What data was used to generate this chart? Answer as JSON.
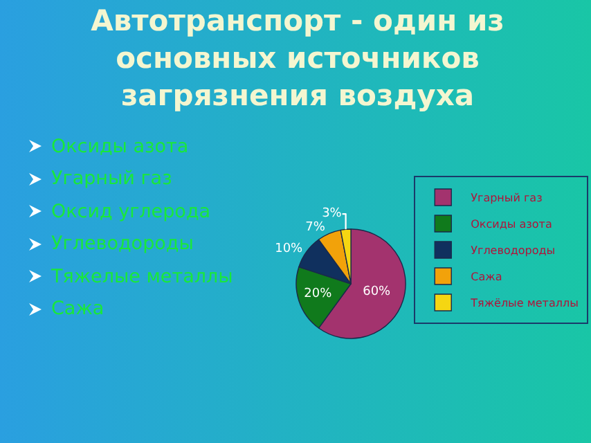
{
  "chart_data": {
    "type": "pie",
    "title": "Автотранспорт - один из основных источников загрязнения воздуха",
    "categories": [
      "Угарный газ",
      "Оксиды азота",
      "Углеводороды",
      "Сажа",
      "Тяжёлые металлы"
    ],
    "values": [
      60,
      20,
      10,
      7,
      3
    ],
    "colors": [
      "#a3336e",
      "#107a1c",
      "#10305e",
      "#f2a20a",
      "#f5d612"
    ],
    "value_labels": [
      "60%",
      "20%",
      "10%",
      "7%",
      "3%"
    ],
    "legend": "right",
    "annotations": [
      "Оксиды азота",
      "Угарный газ",
      "Оксид углерода",
      "Углеводороды",
      "Тяжелые металлы",
      "Сажа"
    ]
  }
}
